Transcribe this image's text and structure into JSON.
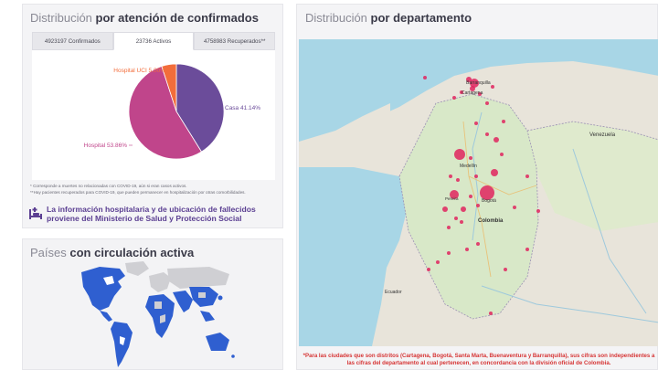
{
  "confirmados_card": {
    "title_prefix": "Distribución",
    "title_bold": "por atención de confirmados",
    "tabs": [
      {
        "label": "4923197 Confirmados"
      },
      {
        "label": "23736 Activos"
      },
      {
        "label": "4758983 Recuperados**"
      }
    ],
    "active_tab": 1,
    "notes": [
      "* Corresponde a muertes no relacionadas con COVID-19, aún si eran casos activos.",
      "**Hay pacientes recuperados para COVID-19, que pueden permanecer en hospitalización por otras comorbilidades."
    ],
    "info_text_line1": "La información hospitalaria y de ubicación de fallecidos",
    "info_text_line2": "proviene del Ministerio de Salud y Protección Social",
    "icon_name": "hospital-bed-icon",
    "accent_color": "#5b3f92"
  },
  "chart_data": {
    "type": "pie",
    "title": "",
    "slices": [
      {
        "label": "Casa 41.14%",
        "value": 41.14,
        "color": "#6b4c9a"
      },
      {
        "label": "Hospital 53.86%",
        "value": 53.86,
        "color": "#c0458b"
      },
      {
        "label": "Hospital UCI 5.00%",
        "value": 5.0,
        "color": "#f26d3b"
      }
    ]
  },
  "paises_card": {
    "title_prefix": "Países",
    "title_bold": "con circulación activa",
    "active_color": "#2f5fd0",
    "inactive_color": "#cfcfd3"
  },
  "departamento_card": {
    "title_prefix": "Distribución",
    "title_bold": "por departamento",
    "map_labels": [
      {
        "id": "barranquilla",
        "text": "Barranquilla"
      },
      {
        "id": "cartagena",
        "text": "Cartagena"
      },
      {
        "id": "venezuela",
        "text": "Venezuela"
      },
      {
        "id": "medellin",
        "text": "Medellín"
      },
      {
        "id": "bogota",
        "text": "Bogotá"
      },
      {
        "id": "colombia",
        "text": "Colombia"
      },
      {
        "id": "ecuador",
        "text": "Ecuador"
      },
      {
        "id": "pereira",
        "text": "Pereira"
      }
    ],
    "bubble_color": "#e0245e",
    "footnote": "*Para las ciudades que son distritos (Cartagena, Bogotá, Santa Marta, Buenaventura y Barranquilla), sus cifras son independientes a las cifras del departamento al cual pertenecen, en concordancia con la división oficial de Colombia."
  }
}
